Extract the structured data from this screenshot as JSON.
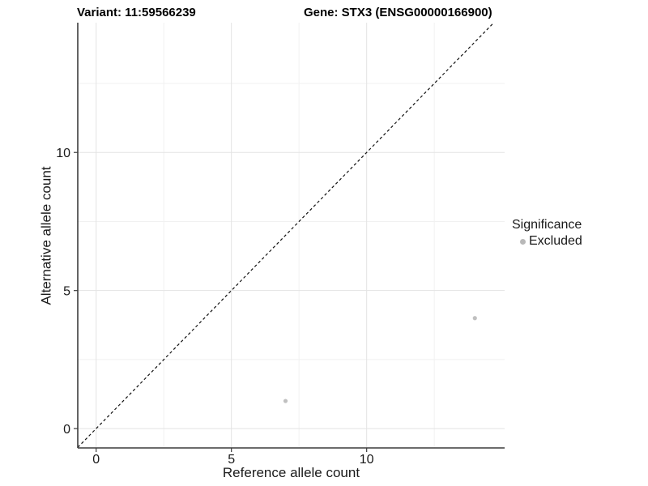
{
  "header": {
    "variant_title": "Variant: 11:59566239",
    "gene_title": "Gene: STX3 (ENSG00000166900)"
  },
  "chart_data": {
    "type": "scatter",
    "title": "Variant: 11:59566239   Gene: STX3 (ENSG00000166900)",
    "xlabel": "Reference allele count",
    "ylabel": "Alternative allele count",
    "xlim": [
      -0.68,
      15.1
    ],
    "ylim": [
      -0.7,
      14.7
    ],
    "x_ticks": [
      0,
      5,
      10
    ],
    "y_ticks": [
      0,
      5,
      10
    ],
    "x_minor_gridlines": [
      2.5,
      7.5,
      12.5
    ],
    "y_minor_gridlines": [
      2.5,
      7.5,
      12.5
    ],
    "grid": true,
    "identity_line": {
      "style": "dashed",
      "from": [
        -0.68,
        -0.68
      ],
      "to": [
        14.7,
        14.7
      ],
      "color": "#111111"
    },
    "series": [
      {
        "name": "Excluded",
        "color": "#c0c0c0",
        "points": [
          {
            "x": 7,
            "y": 1
          },
          {
            "x": 14,
            "y": 4
          }
        ]
      }
    ],
    "legend": {
      "position": "right",
      "title": "Significance",
      "items": [
        {
          "label": "Excluded",
          "color": "#b8b8b8"
        }
      ]
    },
    "colors": {
      "major_grid": "#e3e3e3",
      "minor_grid": "#f1f1f1",
      "axis_line": "#3c3c3c",
      "tick_label": "#1a1a1a"
    }
  }
}
